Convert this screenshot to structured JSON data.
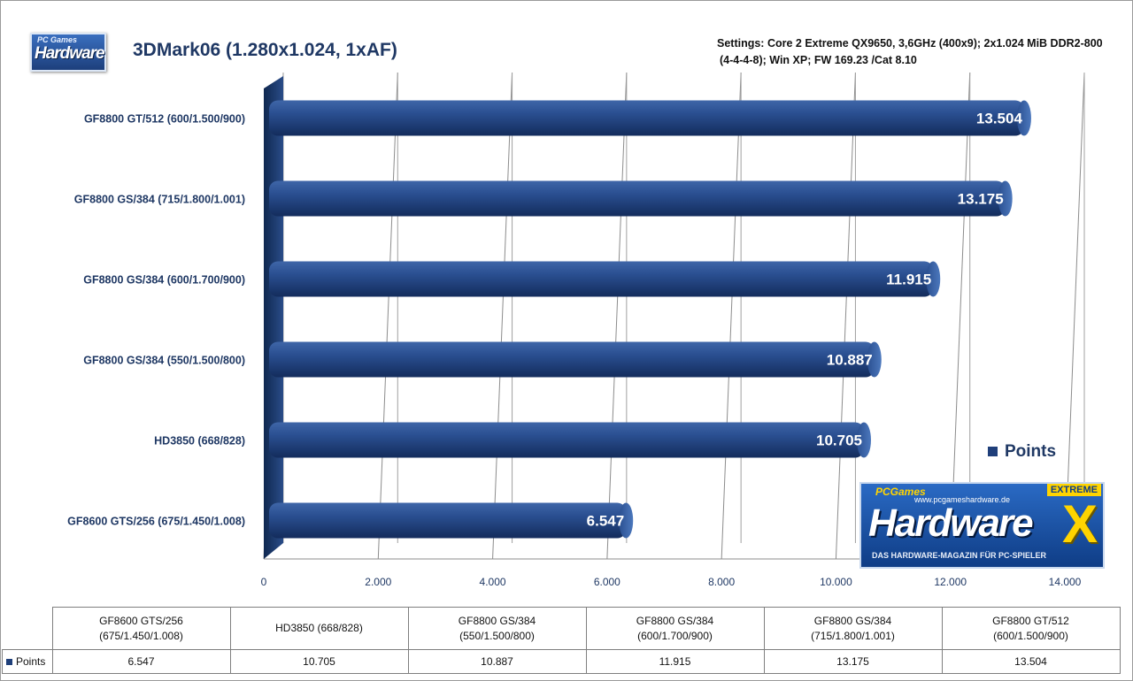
{
  "chart_data": {
    "type": "bar",
    "orientation": "horizontal",
    "title": "3DMark06 (1.280x1.024, 1xAF)",
    "subtitle_lines": [
      "Settings: Core 2 Extreme QX9650, 3,6GHz (400x9); 2x1.024 MiB DDR2-800",
      "(4-4-4-8); Win XP; FW 169.23 /Cat 8.10"
    ],
    "categories": [
      "GF8800 GT/512  (600/1.500/900)",
      "GF8800 GS/384  (715/1.800/1.001)",
      "GF8800 GS/384  (600/1.700/900)",
      "GF8800 GS/384  (550/1.500/800)",
      "HD3850  (668/828)",
      "GF8600 GTS/256  (675/1.450/1.008)"
    ],
    "series": [
      {
        "name": "Points",
        "values": [
          13504,
          13175,
          11915,
          10887,
          10705,
          6547
        ],
        "value_labels": [
          "13.504",
          "13.175",
          "11.915",
          "10.887",
          "10.705",
          "6.547"
        ],
        "color": "#1f3f7a"
      }
    ],
    "xlim": [
      0,
      14000
    ],
    "x_ticks": [
      0,
      2000,
      4000,
      6000,
      8000,
      10000,
      12000,
      14000
    ],
    "x_tick_labels": [
      "0",
      "2.000",
      "4.000",
      "6.000",
      "8.000",
      "10.000",
      "12.000",
      "14.000"
    ],
    "grid": true,
    "legend_position": "right"
  },
  "legend": {
    "label": "Points"
  },
  "logos": {
    "small": {
      "top": "PC Games",
      "main": "Hardware"
    },
    "large": {
      "games": "PCGames",
      "url": "www.pcgameshardware.de",
      "main": "Hardware",
      "tagline": "DAS HARDWARE-MAGAZIN FÜR PC-SPIELER",
      "edition": "EXTREME",
      "mark": "X"
    }
  },
  "data_table": {
    "row_label": "Points",
    "columns": [
      {
        "line1": "GF8600 GTS/256",
        "line2": "(675/1.450/1.008)",
        "value": "6.547"
      },
      {
        "line1": "HD3850 (668/828)",
        "line2": "",
        "value": "10.705"
      },
      {
        "line1": "GF8800 GS/384",
        "line2": "(550/1.500/800)",
        "value": "10.887"
      },
      {
        "line1": "GF8800 GS/384",
        "line2": "(600/1.700/900)",
        "value": "11.915"
      },
      {
        "line1": "GF8800 GS/384",
        "line2": "(715/1.800/1.001)",
        "value": "13.175"
      },
      {
        "line1": "GF8800 GT/512",
        "line2": "(600/1.500/900)",
        "value": "13.504"
      }
    ]
  }
}
